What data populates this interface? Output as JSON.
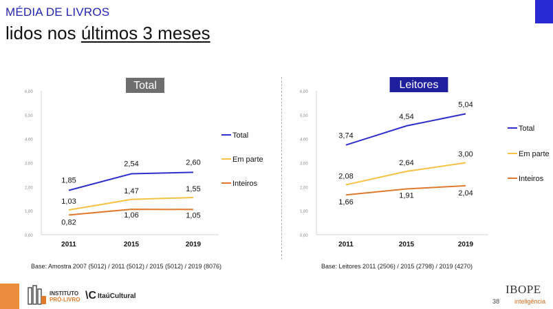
{
  "header": {
    "kicker": "MÉDIA DE LIVROS",
    "title_prefix": "lidos nos ",
    "title_underlined": "últimos 3 meses"
  },
  "chart_data": [
    {
      "type": "line",
      "title": "Total",
      "title_bg": "#6e6e6e",
      "categories": [
        "2011",
        "2015",
        "2019"
      ],
      "ylim": [
        0,
        6
      ],
      "yticks": [
        "0,00",
        "1,00",
        "2,00",
        "3,00",
        "4,00",
        "5,00",
        "6,00"
      ],
      "legend_position": "right",
      "series": [
        {
          "name": "Total",
          "color": "#2e2ecc",
          "values": [
            1.85,
            2.54,
            2.6
          ],
          "labels": [
            "1,85",
            "2,54",
            "2,60"
          ]
        },
        {
          "name": "Em parte",
          "color": "#f5c242",
          "values": [
            1.03,
            1.47,
            1.55
          ],
          "labels": [
            "1,03",
            "1,47",
            "1,55"
          ]
        },
        {
          "name": "Inteiros",
          "color": "#e0782c",
          "values": [
            0.82,
            1.06,
            1.05
          ],
          "labels": [
            "0,82",
            "1,06",
            "1,05"
          ]
        }
      ],
      "base_note": "Base: Amostra 2007 (5012) / 2011 (5012) / 2015 (5012) / 2019 (8076)"
    },
    {
      "type": "line",
      "title": "Leitores",
      "title_bg": "#1f1f9e",
      "categories": [
        "2011",
        "2015",
        "2019"
      ],
      "ylim": [
        0,
        6
      ],
      "yticks": [
        "0,00",
        "1,00",
        "2,00",
        "3,00",
        "4,00",
        "5,00",
        "6,00"
      ],
      "legend_position": "right",
      "series": [
        {
          "name": "Total",
          "color": "#2e2ecc",
          "values": [
            3.74,
            4.54,
            5.04
          ],
          "labels": [
            "3,74",
            "4,54",
            "5,04"
          ]
        },
        {
          "name": "Em parte",
          "color": "#f5c242",
          "values": [
            2.08,
            2.64,
            3.0
          ],
          "labels": [
            "2,08",
            "2,64",
            "3,00"
          ]
        },
        {
          "name": "Inteiros",
          "color": "#e0782c",
          "values": [
            1.66,
            1.91,
            2.04
          ],
          "labels": [
            "1,66",
            "1,91",
            "2,04"
          ]
        }
      ],
      "base_note": "Base: Leitores 2011 (2506) / 2015 (2798) / 2019 (4270)"
    }
  ],
  "footer": {
    "ipl_line1": "INSTITUTO",
    "ipl_line2": "PRÓ-LIVRO",
    "itau_mark": "\\C",
    "itau_text": "ItaúCultural",
    "page_number": "38",
    "ibope": "IBOPE",
    "ibope_sub": "inteligência"
  }
}
